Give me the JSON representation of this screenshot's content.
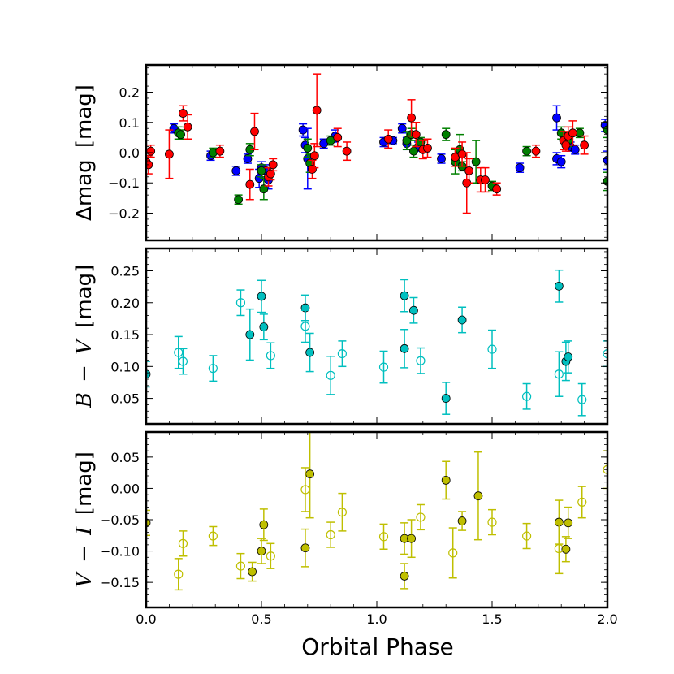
{
  "chart_data": [
    {
      "type": "scatter",
      "panel": "top",
      "ylabel": {
        "prefix": "Δmag",
        "unit": "[mag]"
      },
      "xlim": [
        0.0,
        2.0
      ],
      "ylim": [
        -0.29,
        0.29
      ],
      "yticks": [
        -0.2,
        -0.1,
        0.0,
        0.1,
        0.2
      ],
      "ytick_labels": [
        "−0.2",
        "−0.1",
        "0.0",
        "0.1",
        "0.2"
      ],
      "series": [
        {
          "color": "#0000ff",
          "points": [
            [
              0.12,
              0.08,
              0.015
            ],
            [
              0.28,
              -0.01,
              0.015
            ],
            [
              0.39,
              -0.06,
              0.015
            ],
            [
              0.44,
              -0.02,
              0.015
            ],
            [
              0.49,
              -0.085,
              0.03
            ],
            [
              0.5,
              -0.05,
              0.02
            ],
            [
              0.52,
              -0.06,
              0.02
            ],
            [
              0.53,
              -0.09,
              0.03
            ],
            [
              0.68,
              0.075,
              0.02
            ],
            [
              0.69,
              0.025,
              0.025
            ],
            [
              0.7,
              -0.02,
              0.1
            ],
            [
              0.77,
              0.03,
              0.015
            ],
            [
              0.82,
              0.055,
              0.02
            ],
            [
              1.03,
              0.035,
              0.015
            ],
            [
              1.07,
              0.04,
              0.01
            ],
            [
              1.11,
              0.08,
              0.015
            ],
            [
              1.13,
              0.03,
              0.02
            ],
            [
              1.18,
              0.02,
              0.015
            ],
            [
              1.28,
              -0.02,
              0.015
            ],
            [
              1.62,
              -0.05,
              0.015
            ],
            [
              1.78,
              0.115,
              0.04
            ],
            [
              1.78,
              -0.02,
              0.02
            ],
            [
              1.8,
              -0.03,
              0.02
            ],
            [
              1.84,
              0.02,
              0.015
            ],
            [
              1.86,
              0.01,
              0.015
            ],
            [
              1.99,
              0.09,
              0.02
            ],
            [
              2.0,
              -0.025,
              0.03
            ]
          ]
        },
        {
          "color": "#008000",
          "points": [
            [
              0.14,
              0.065,
              0.02
            ],
            [
              0.15,
              0.06,
              0.015
            ],
            [
              0.29,
              0.0,
              0.015
            ],
            [
              0.4,
              -0.155,
              0.015
            ],
            [
              0.45,
              0.01,
              0.02
            ],
            [
              0.5,
              -0.06,
              0.02
            ],
            [
              0.51,
              -0.12,
              0.035
            ],
            [
              0.7,
              0.015,
              0.03
            ],
            [
              0.71,
              -0.035,
              0.03
            ],
            [
              0.8,
              0.04,
              0.015
            ],
            [
              1.13,
              0.04,
              0.03
            ],
            [
              1.15,
              0.06,
              0.02
            ],
            [
              1.16,
              0.005,
              0.02
            ],
            [
              1.19,
              0.035,
              0.015
            ],
            [
              1.3,
              0.06,
              0.02
            ],
            [
              1.34,
              -0.03,
              0.04
            ],
            [
              1.36,
              0.01,
              0.05
            ],
            [
              1.37,
              -0.045,
              0.015
            ],
            [
              1.43,
              -0.03,
              0.07
            ],
            [
              1.5,
              -0.11,
              0.015
            ],
            [
              1.65,
              0.005,
              0.015
            ],
            [
              1.8,
              0.065,
              0.02
            ],
            [
              1.83,
              0.04,
              0.02
            ],
            [
              1.88,
              0.065,
              0.015
            ],
            [
              2.0,
              0.075,
              0.025
            ],
            [
              2.0,
              -0.095,
              0.03
            ]
          ]
        },
        {
          "color": "#ff0000",
          "points": [
            [
              0.0,
              -0.03,
              0.02
            ],
            [
              0.01,
              -0.04,
              0.03
            ],
            [
              0.02,
              0.005,
              0.02
            ],
            [
              0.1,
              -0.005,
              0.08
            ],
            [
              0.16,
              0.13,
              0.025
            ],
            [
              0.18,
              0.085,
              0.04
            ],
            [
              0.32,
              0.005,
              0.02
            ],
            [
              0.45,
              -0.105,
              0.05
            ],
            [
              0.47,
              0.07,
              0.06
            ],
            [
              0.53,
              -0.08,
              0.03
            ],
            [
              0.54,
              -0.07,
              0.02
            ],
            [
              0.55,
              -0.04,
              0.02
            ],
            [
              0.72,
              -0.055,
              0.03
            ],
            [
              0.73,
              -0.01,
              0.04
            ],
            [
              0.74,
              0.14,
              0.12
            ],
            [
              0.83,
              0.05,
              0.03
            ],
            [
              0.87,
              0.005,
              0.03
            ],
            [
              1.05,
              0.045,
              0.03
            ],
            [
              1.15,
              0.115,
              0.06
            ],
            [
              1.17,
              0.06,
              0.04
            ],
            [
              1.2,
              0.01,
              0.03
            ],
            [
              1.22,
              0.015,
              0.03
            ],
            [
              1.34,
              -0.015,
              0.03
            ],
            [
              1.37,
              -0.005,
              0.04
            ],
            [
              1.39,
              -0.1,
              0.1
            ],
            [
              1.4,
              -0.06,
              0.04
            ],
            [
              1.45,
              -0.09,
              0.04
            ],
            [
              1.47,
              -0.09,
              0.04
            ],
            [
              1.52,
              -0.12,
              0.02
            ],
            [
              1.69,
              0.005,
              0.02
            ],
            [
              1.81,
              0.04,
              0.03
            ],
            [
              1.82,
              0.025,
              0.02
            ],
            [
              1.83,
              0.055,
              0.03
            ],
            [
              1.85,
              0.065,
              0.04
            ],
            [
              1.9,
              0.025,
              0.03
            ]
          ]
        }
      ]
    },
    {
      "type": "scatter",
      "panel": "middle",
      "ylabel": {
        "prefix": "B",
        "var": "V",
        "unit": "[mag]"
      },
      "xlim": [
        0.0,
        2.0
      ],
      "ylim": [
        0.01,
        0.285
      ],
      "yticks": [
        0.05,
        0.1,
        0.15,
        0.2,
        0.25
      ],
      "ytick_labels": [
        "0.05",
        "0.10",
        "0.15",
        "0.20",
        "0.25"
      ],
      "series": [
        {
          "color": "#00bfbf",
          "filled": true,
          "points": [
            [
              0.0,
              0.088,
              0.02
            ],
            [
              0.45,
              0.15,
              0.04
            ],
            [
              0.5,
              0.21,
              0.025
            ],
            [
              0.51,
              0.162,
              0.02
            ],
            [
              0.69,
              0.192,
              0.02
            ],
            [
              0.71,
              0.122,
              0.03
            ],
            [
              1.12,
              0.211,
              0.025
            ],
            [
              1.12,
              0.128,
              0.03
            ],
            [
              1.16,
              0.188,
              0.02
            ],
            [
              1.3,
              0.05,
              0.025
            ],
            [
              1.37,
              0.173,
              0.02
            ],
            [
              1.79,
              0.226,
              0.025
            ],
            [
              1.82,
              0.108,
              0.03
            ],
            [
              1.83,
              0.115,
              0.025
            ]
          ]
        },
        {
          "color": "#00bfbf",
          "filled": false,
          "points": [
            [
              0.14,
              0.122,
              0.025
            ],
            [
              0.16,
              0.108,
              0.02
            ],
            [
              0.29,
              0.097,
              0.02
            ],
            [
              0.41,
              0.2,
              0.02
            ],
            [
              0.54,
              0.117,
              0.02
            ],
            [
              0.69,
              0.163,
              0.025
            ],
            [
              0.8,
              0.086,
              0.03
            ],
            [
              0.85,
              0.12,
              0.02
            ],
            [
              1.03,
              0.099,
              0.025
            ],
            [
              1.19,
              0.109,
              0.02
            ],
            [
              1.5,
              0.127,
              0.03
            ],
            [
              1.65,
              0.053,
              0.02
            ],
            [
              1.79,
              0.088,
              0.035
            ],
            [
              1.89,
              0.048,
              0.025
            ],
            [
              2.0,
              0.12,
              0.02
            ]
          ]
        }
      ]
    },
    {
      "type": "scatter",
      "panel": "bottom",
      "ylabel": {
        "prefix": "V",
        "var": "I",
        "unit": "[mag]"
      },
      "xlim": [
        0.0,
        2.0
      ],
      "ylim": [
        -0.19,
        0.09
      ],
      "yticks": [
        -0.15,
        -0.1,
        -0.05,
        0.0,
        0.05
      ],
      "ytick_labels": [
        "−0.15",
        "−0.10",
        "−0.05",
        "0.00",
        "0.05"
      ],
      "series": [
        {
          "color": "#bfbf00",
          "filled": true,
          "points": [
            [
              0.0,
              -0.055,
              0.02
            ],
            [
              0.46,
              -0.133,
              0.015
            ],
            [
              0.5,
              -0.1,
              0.02
            ],
            [
              0.51,
              -0.058,
              0.025
            ],
            [
              0.69,
              -0.095,
              0.03
            ],
            [
              0.71,
              0.023,
              0.07
            ],
            [
              1.12,
              -0.08,
              0.025
            ],
            [
              1.12,
              -0.14,
              0.02
            ],
            [
              1.15,
              -0.08,
              0.03
            ],
            [
              1.3,
              0.013,
              0.03
            ],
            [
              1.37,
              -0.052,
              0.015
            ],
            [
              1.44,
              -0.012,
              0.07
            ],
            [
              1.79,
              -0.054,
              0.035
            ],
            [
              1.82,
              -0.097,
              0.02
            ],
            [
              1.83,
              -0.055,
              0.025
            ]
          ]
        },
        {
          "color": "#bfbf00",
          "filled": false,
          "points": [
            [
              0.14,
              -0.137,
              0.025
            ],
            [
              0.16,
              -0.088,
              0.02
            ],
            [
              0.29,
              -0.076,
              0.015
            ],
            [
              0.41,
              -0.124,
              0.02
            ],
            [
              0.54,
              -0.108,
              0.02
            ],
            [
              0.69,
              -0.002,
              0.035
            ],
            [
              0.8,
              -0.074,
              0.02
            ],
            [
              0.85,
              -0.038,
              0.03
            ],
            [
              1.03,
              -0.077,
              0.02
            ],
            [
              1.19,
              -0.046,
              0.02
            ],
            [
              1.33,
              -0.103,
              0.04
            ],
            [
              1.5,
              -0.054,
              0.02
            ],
            [
              1.65,
              -0.076,
              0.02
            ],
            [
              1.79,
              -0.096,
              0.04
            ],
            [
              1.89,
              -0.022,
              0.025
            ],
            [
              2.0,
              0.03,
              0.03
            ]
          ]
        }
      ]
    }
  ],
  "x_axis": {
    "xlabel": "Orbital Phase",
    "xticks": [
      0.0,
      0.5,
      1.0,
      1.5,
      2.0
    ],
    "xtick_labels": [
      "0.0",
      "0.5",
      "1.0",
      "1.5",
      "2.0"
    ]
  }
}
